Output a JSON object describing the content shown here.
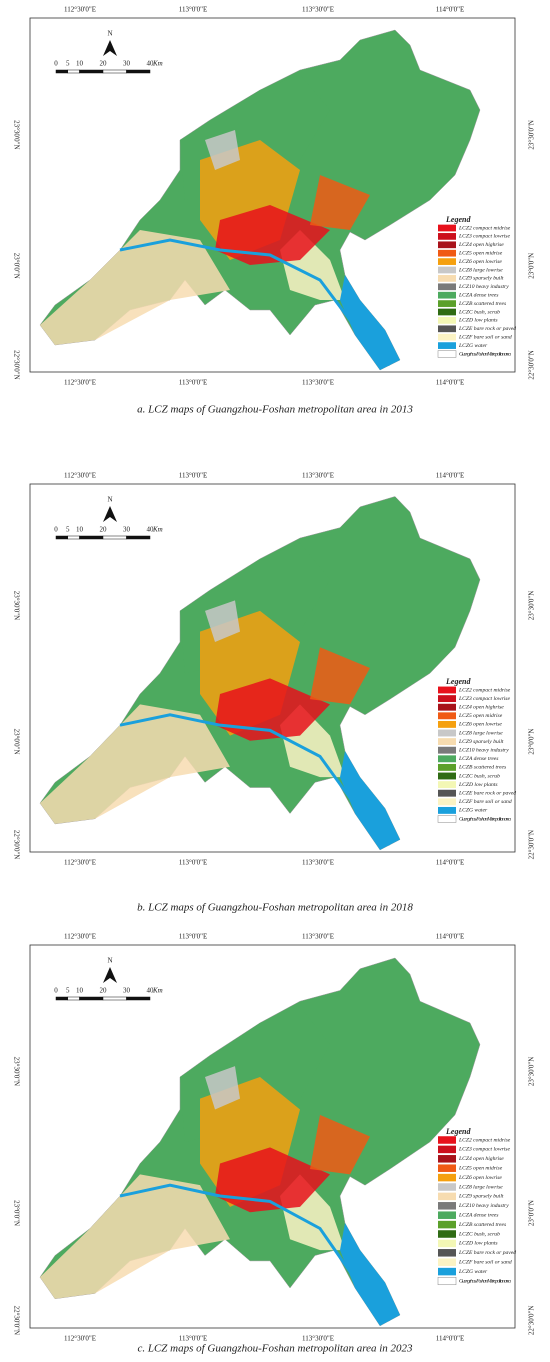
{
  "north": "N",
  "scale_bar": {
    "marks": [
      0,
      5,
      10,
      20,
      30,
      40
    ],
    "unit": "Km"
  },
  "longitude_labels": [
    "112°30'0\"E",
    "113°0'0\"E",
    "113°30'0\"E",
    "114°0'0\"E"
  ],
  "latitude_labels": [
    "23°30'0\"N",
    "23°0'0\"N",
    "22°30'0\"N"
  ],
  "legend": {
    "title": "Legend",
    "items": [
      {
        "label": "LCZ2 compact midrise",
        "color": "#e8111b"
      },
      {
        "label": "LCZ3 compact lowrise",
        "color": "#cc0f1c"
      },
      {
        "label": "LCZ4 open highrise",
        "color": "#a8121a"
      },
      {
        "label": "LCZ5 open midrise",
        "color": "#f05a14"
      },
      {
        "label": "LCZ6 open lowrise",
        "color": "#f5a00f"
      },
      {
        "label": "LCZ8 large lowrise",
        "color": "#c8c8c8"
      },
      {
        "label": "LCZ9 sparsely built",
        "color": "#f7dcb0"
      },
      {
        "label": "LCZ10 heavy industry",
        "color": "#7a7a7a"
      },
      {
        "label": "LCZA dense trees",
        "color": "#4daa5f"
      },
      {
        "label": "LCZB scattered trees",
        "color": "#5ba02a"
      },
      {
        "label": "LCZC bush, scrub",
        "color": "#2f6b14"
      },
      {
        "label": "LCZD low plants",
        "color": "#f3f7b5"
      },
      {
        "label": "LCZE bare rock or paved",
        "color": "#555555"
      },
      {
        "label": "LCZF bare soil or sand",
        "color": "#fbf3c4"
      },
      {
        "label": "LCZG water",
        "color": "#1aa0dc"
      },
      {
        "label": "Guangzhou-Foshan Metropolitan area",
        "color": "#ffffff"
      }
    ]
  },
  "panels": [
    {
      "caption": "a. LCZ maps of Guangzhou-Foshan metropolitan area in 2013"
    },
    {
      "caption": "b. LCZ maps of Guangzhou-Foshan metropolitan area in 2018"
    },
    {
      "caption": "c. LCZ maps of Guangzhou-Foshan metropolitan area in 2023"
    }
  ]
}
